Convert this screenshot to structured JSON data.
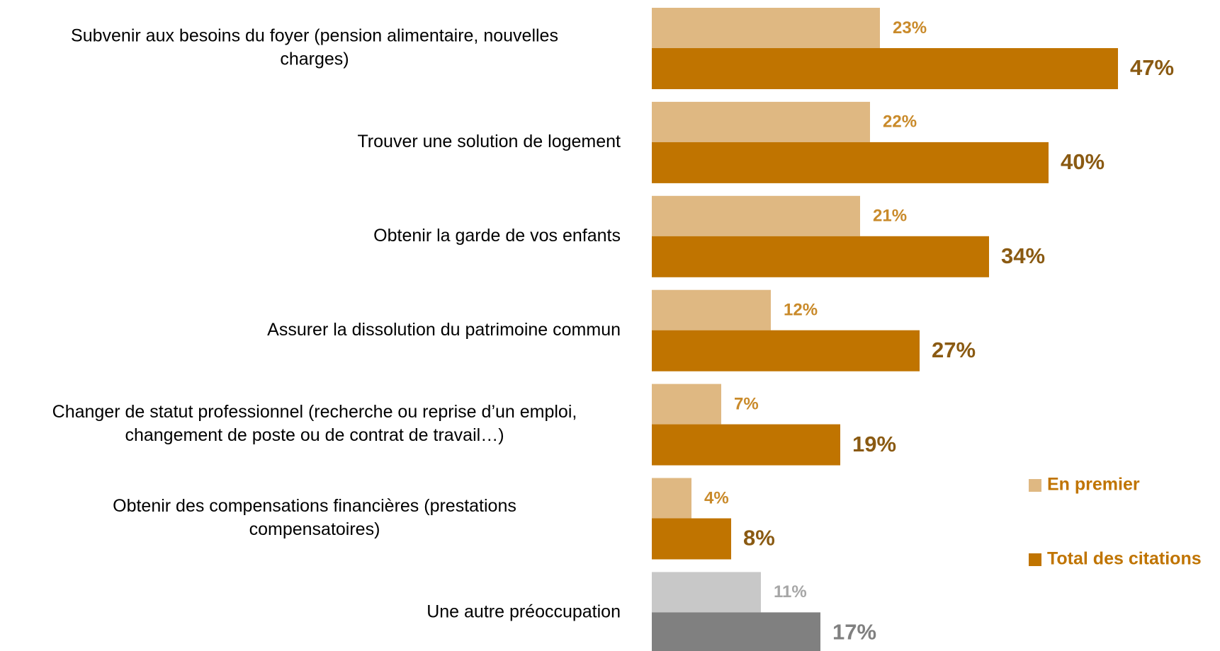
{
  "chart_data": {
    "type": "hbar",
    "categories": [
      [
        "Subvenir aux besoins du foyer (pension alimentaire, nouvelles",
        "charges)"
      ],
      [
        "Trouver une solution de logement"
      ],
      [
        "Obtenir la garde de vos enfants"
      ],
      [
        "Assurer la dissolution du patrimoine commun"
      ],
      [
        "Changer de statut professionnel (recherche ou reprise d’un emploi,",
        "changement de poste ou de contrat de travail…)"
      ],
      [
        "Obtenir des compensations financières (prestations",
        "compensatoires)"
      ],
      [
        "Une autre préoccupation"
      ]
    ],
    "series": [
      {
        "name": "En premier",
        "color": "#dfb882",
        "colors": [
          "#dfb882",
          "#dfb882",
          "#dfb882",
          "#dfb882",
          "#dfb882",
          "#dfb882",
          "#c8c8c8"
        ],
        "label_colors": [
          "#c98a2a",
          "#c98a2a",
          "#c98a2a",
          "#c98a2a",
          "#c98a2a",
          "#c98a2a",
          "#a6a6a6"
        ],
        "values": [
          23,
          22,
          21,
          12,
          7,
          4,
          11
        ],
        "value_labels": [
          "23%",
          "22%",
          "21%",
          "12%",
          "7%",
          "4%",
          "11%"
        ]
      },
      {
        "name": "Total des citations",
        "color": "#c07400",
        "colors": [
          "#c07400",
          "#c07400",
          "#c07400",
          "#c07400",
          "#c07400",
          "#c07400",
          "#808080"
        ],
        "label_colors": [
          "#8a5a12",
          "#8a5a12",
          "#8a5a12",
          "#8a5a12",
          "#8a5a12",
          "#8a5a12",
          "#808080"
        ],
        "values": [
          47,
          40,
          34,
          27,
          19,
          8,
          17
        ],
        "value_labels": [
          "47%",
          "40%",
          "34%",
          "27%",
          "19%",
          "8%",
          "17%"
        ]
      }
    ],
    "legend_color": "#c07400"
  }
}
